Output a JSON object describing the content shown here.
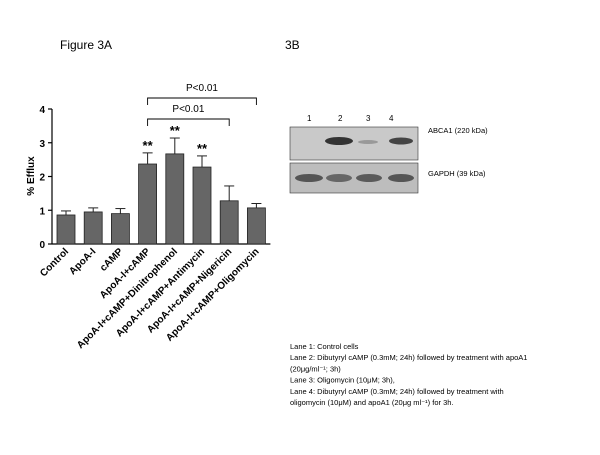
{
  "chart_data": {
    "type": "bar",
    "title": "Figure 3A",
    "y_label": "% Efflux",
    "categories": [
      "Control",
      "ApoA-I",
      "cAMP",
      "ApoA-I+cAMP",
      "ApoA-I+cAMP+Dinitrophenol",
      "ApoA-I+cAMP+Antimycin",
      "ApoA-I+cAMP+Nigericin",
      "ApoA-I+cAMP+Oligomycin"
    ],
    "values": [
      0.86,
      0.95,
      0.9,
      2.37,
      2.67,
      2.28,
      1.28,
      1.07
    ],
    "errors": [
      0.12,
      0.12,
      0.15,
      0.33,
      0.47,
      0.33,
      0.44,
      0.13
    ],
    "color": "#666666",
    "ylim": [
      0,
      4
    ],
    "yticks": [
      0,
      1,
      2,
      3,
      4
    ],
    "grid": false,
    "annotations": [
      {
        "text": "**",
        "category": "ApoA-I+cAMP"
      },
      {
        "text": "**",
        "category": "ApoA-I+cAMP+Dinitrophenol"
      },
      {
        "text": "**",
        "category": "ApoA-I+cAMP+Antimycin"
      }
    ],
    "brackets": [
      {
        "text": "P<0.01",
        "from": "ApoA-I+cAMP",
        "to": "ApoA-I+cAMP+Oligomycin"
      },
      {
        "text": "P<0.01",
        "from": "ApoA-I+cAMP",
        "to": "ApoA-I+cAMP+Nigericin"
      }
    ]
  },
  "panel_b": {
    "label": "3B",
    "lanes": [
      "1",
      "2",
      "3",
      "4"
    ],
    "bands": [
      "ABCA1 (220 kDa)",
      "GAPDH (39 kDa)"
    ],
    "legend": [
      "Lane 1: Control cells",
      "Lane 2: Dibutyryl cAMP (0.3mM; 24h) followed by treatment with apoA1",
      "(20μg/ml⁻¹; 3h)",
      "Lane 3: Oligomycin (10μM; 3h),",
      "Lane 4: Dibutyryl cAMP (0.3mM; 24h) followed by treatment with",
      "oligomycin (10μM) and apoA1 (20μg ml⁻¹) for 3h."
    ]
  }
}
